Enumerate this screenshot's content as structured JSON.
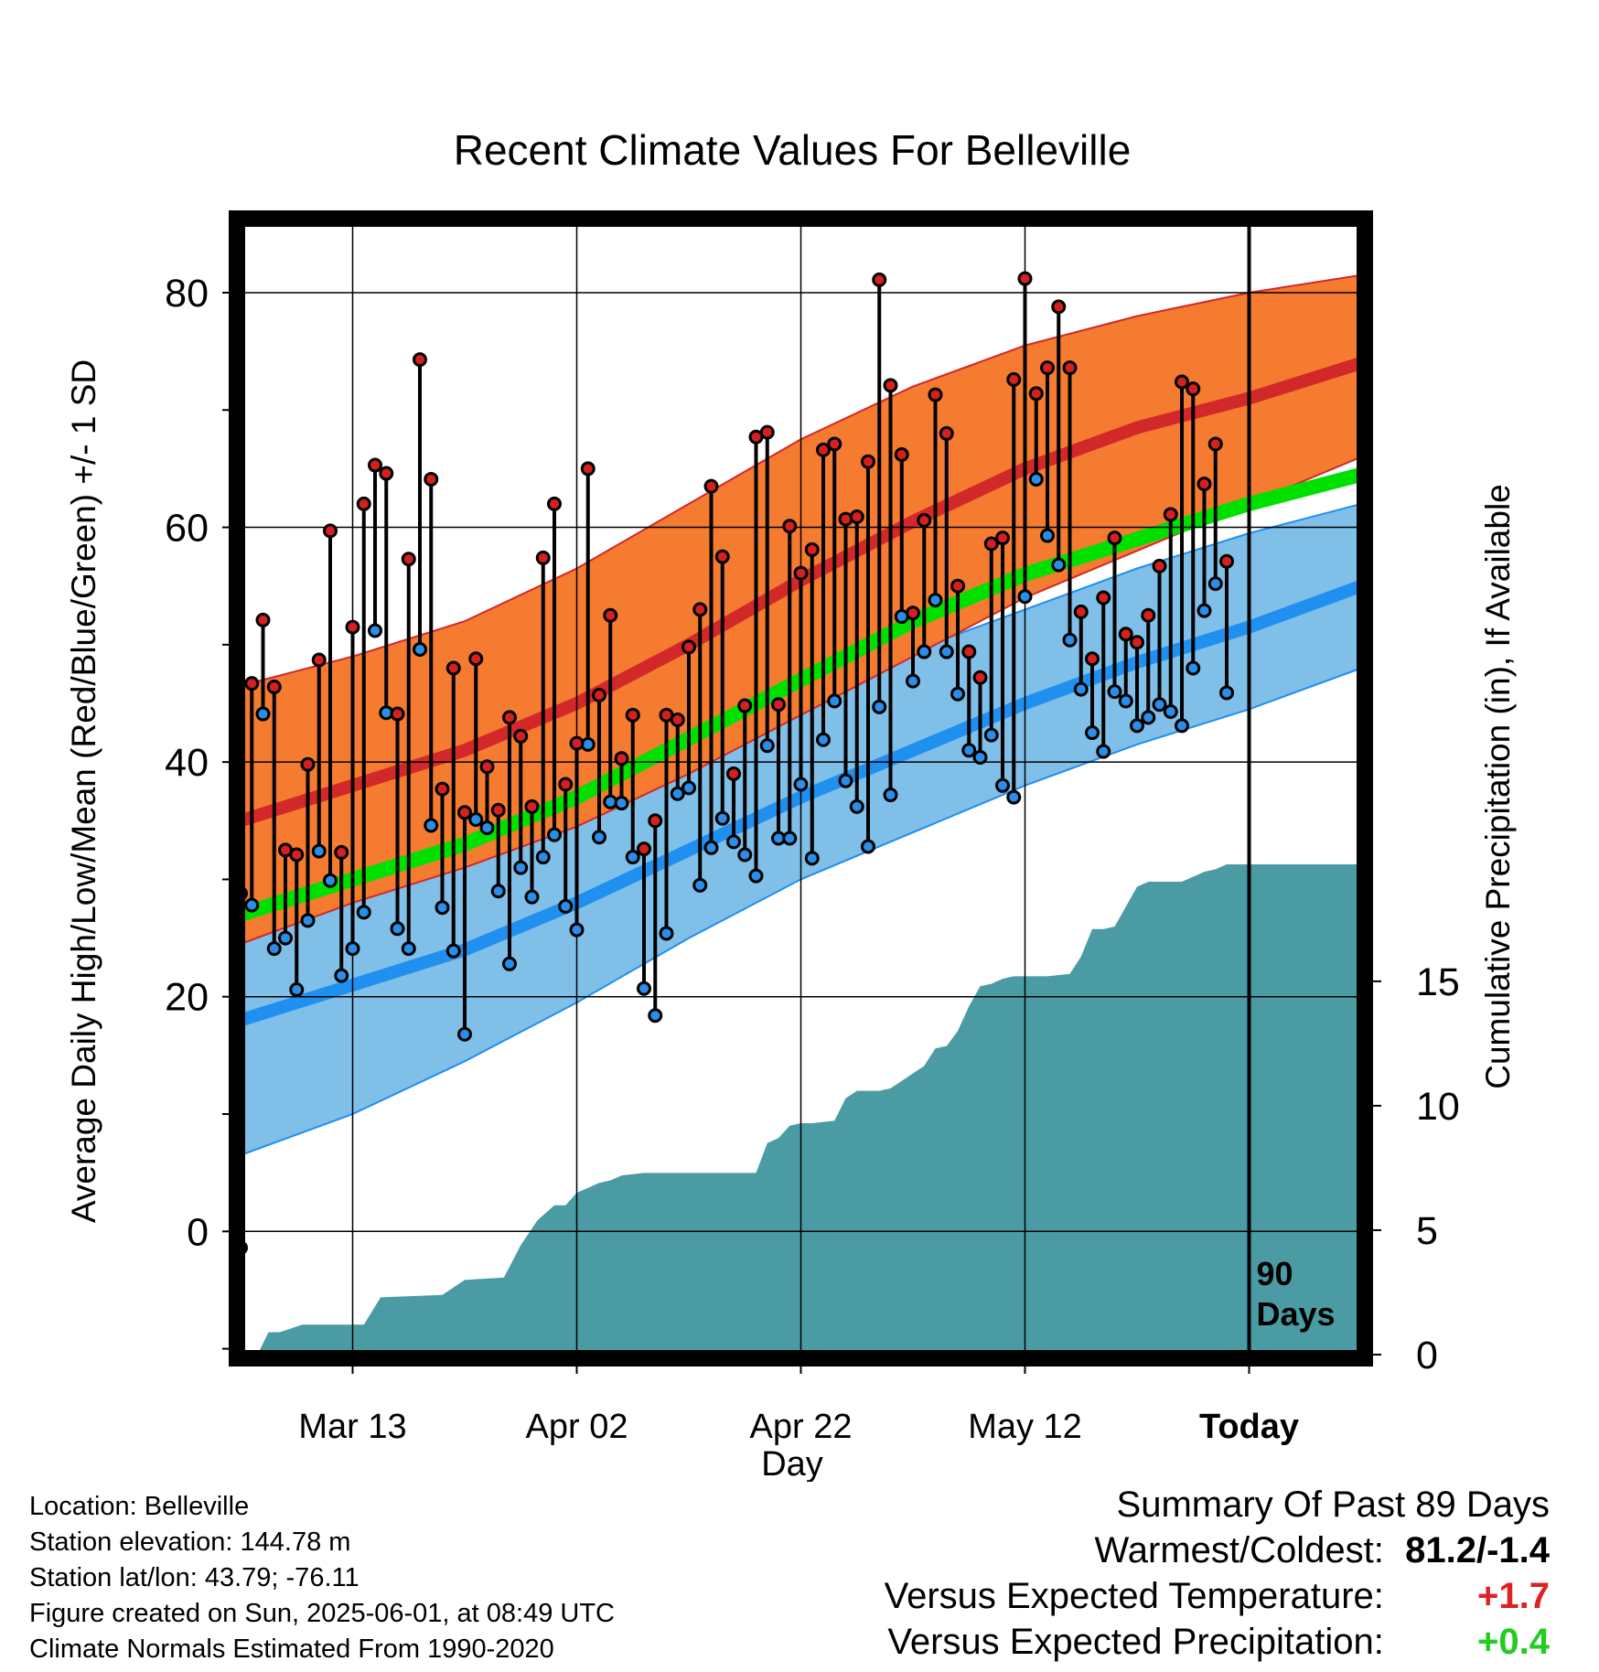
{
  "title": "Recent Climate Values For Belleville",
  "chart_data": {
    "type": "line",
    "title": "Recent Climate Values For Belleville",
    "xlabel": "Day",
    "ylabel_left": "Average Daily High/Low/Mean (Red/Blue/Green) +/- 1 SD",
    "ylabel_right": "Cumulative Precipitation (in), If Available",
    "x_ticks": [
      "Mar 13",
      "Apr 02",
      "Apr 22",
      "May 12",
      "Today"
    ],
    "x_tick_days": [
      10,
      30,
      50,
      70,
      90
    ],
    "xlim": [
      0,
      100
    ],
    "y_left_ticks": [
      "0",
      "20",
      "40",
      "60",
      "80"
    ],
    "y_left_tick_values": [
      0,
      20,
      40,
      60,
      80
    ],
    "y_left_lim": [
      -10.5,
      86
    ],
    "y_right_ticks": [
      "0",
      "5",
      "10",
      "15"
    ],
    "y_right_tick_values": [
      0,
      5,
      10,
      15
    ],
    "y_right_lim": [
      0,
      45.5
    ],
    "today_label": [
      "90",
      "Days"
    ],
    "grid": true,
    "colors": {
      "high_band": "#f47b30",
      "high_mean": "#d2282a",
      "low_band": "#7fbfe8",
      "low_mean": "#1f8ff0",
      "mean_line": "#00e000",
      "precip": "#4a9ba4"
    },
    "normals": {
      "day": [
        0,
        10,
        20,
        30,
        40,
        50,
        60,
        70,
        80,
        90,
        100
      ],
      "high_upper": [
        46.5,
        49,
        52,
        56.5,
        62,
        67.5,
        72,
        75.5,
        78,
        80,
        81.5
      ],
      "high_mean": [
        35,
        38,
        41,
        45,
        50,
        55.5,
        60.5,
        65,
        68.5,
        71,
        74
      ],
      "high_lower": [
        24.5,
        28,
        31,
        34.5,
        39,
        44,
        49,
        54,
        58,
        62,
        66
      ],
      "low_upper": [
        30.5,
        32.5,
        34,
        37,
        41,
        45,
        49.5,
        53,
        56.5,
        59.5,
        62
      ],
      "low_mean": [
        18,
        21,
        24,
        28,
        32.5,
        37,
        41,
        45,
        48.5,
        51.5,
        55
      ],
      "low_lower": [
        6.5,
        10,
        14.5,
        19.5,
        25,
        30,
        34,
        38,
        41.5,
        44.5,
        48
      ],
      "mean": [
        27,
        30,
        33,
        37,
        42,
        47,
        52,
        56,
        59,
        62,
        64.5
      ]
    },
    "series": [
      {
        "name": "High",
        "values": [
          28.8,
          46.7,
          52.1,
          46.4,
          32.5,
          32.1,
          39.8,
          48.7,
          59.7,
          32.3,
          51.5,
          62.0,
          65.3,
          64.6,
          44.1,
          57.3,
          74.3,
          64.1,
          37.7,
          48.0,
          35.7,
          48.8,
          39.6,
          35.9,
          43.8,
          42.2,
          36.2,
          57.4,
          62.0,
          38.1,
          41.6,
          65.0,
          45.7,
          52.5,
          40.3,
          44.0,
          32.6,
          35.0,
          44.0,
          43.6,
          49.8,
          53.0,
          63.5,
          57.5,
          39.0,
          44.8,
          67.7,
          68.1,
          44.9,
          60.1,
          56.1,
          58.1,
          66.6,
          67.1,
          60.7,
          60.9,
          65.6,
          81.1,
          72.1,
          66.2,
          52.7,
          60.6,
          71.3,
          68.0,
          55.0,
          49.4,
          47.2,
          58.6,
          59.1,
          72.6,
          81.2,
          71.4,
          73.6,
          78.8,
          73.6,
          52.8,
          48.8,
          54.0,
          59.1,
          50.9,
          50.2,
          52.5,
          56.7,
          61.1,
          72.4,
          71.8,
          63.7,
          67.1,
          57.1
        ]
      },
      {
        "name": "Low",
        "values": [
          -1.4,
          27.8,
          44.1,
          24.1,
          25.0,
          20.6,
          26.5,
          32.4,
          29.9,
          21.8,
          24.1,
          27.2,
          51.2,
          44.2,
          25.8,
          24.1,
          49.6,
          34.6,
          27.6,
          23.9,
          16.8,
          35.1,
          34.4,
          29.0,
          22.8,
          31.0,
          28.5,
          31.9,
          33.8,
          27.7,
          25.7,
          41.5,
          33.6,
          36.6,
          36.5,
          31.9,
          20.7,
          18.4,
          25.4,
          37.3,
          37.8,
          29.5,
          32.7,
          35.2,
          33.2,
          32.1,
          30.3,
          41.4,
          33.5,
          33.5,
          38.1,
          31.8,
          41.9,
          45.2,
          38.4,
          36.2,
          32.8,
          44.7,
          37.2,
          52.4,
          46.9,
          49.4,
          53.8,
          49.4,
          45.8,
          41.0,
          40.4,
          42.3,
          38.0,
          37.0,
          54.1,
          64.1,
          59.3,
          56.8,
          50.4,
          46.2,
          42.5,
          40.9,
          46.0,
          45.2,
          43.1,
          43.8,
          44.9,
          44.3,
          43.1,
          48.0,
          52.9,
          55.2,
          45.9
        ]
      }
    ],
    "precip": {
      "day": [
        0,
        1.5,
        2.5,
        3.5,
        5.5,
        11,
        12.5,
        18,
        20,
        23.5,
        25,
        26.5,
        28,
        29,
        30,
        31,
        32,
        33,
        34,
        36,
        38,
        40,
        42,
        44,
        46,
        47,
        48,
        49,
        50,
        51,
        53,
        54,
        55,
        57,
        58,
        59,
        61,
        62,
        63,
        64,
        65,
        66,
        67,
        68,
        69,
        70,
        72,
        74,
        75,
        76,
        77,
        78,
        79,
        80,
        81,
        83,
        84,
        86,
        87,
        88,
        89,
        90,
        100
      ],
      "values": [
        0,
        0,
        0.9,
        0.9,
        1.2,
        1.2,
        2.3,
        2.4,
        3.0,
        3.1,
        4.4,
        5.4,
        6.0,
        6.0,
        6.5,
        6.7,
        6.9,
        7.0,
        7.2,
        7.3,
        7.3,
        7.3,
        7.3,
        7.3,
        7.3,
        8.5,
        8.7,
        9.2,
        9.3,
        9.3,
        9.4,
        10.3,
        10.6,
        10.6,
        10.7,
        11.0,
        11.6,
        12.3,
        12.4,
        13.0,
        14.0,
        14.8,
        14.9,
        15.1,
        15.2,
        15.2,
        15.2,
        15.3,
        16.0,
        17.1,
        17.1,
        17.2,
        18.0,
        18.8,
        19.0,
        19.0,
        19.0,
        19.4,
        19.5,
        19.7,
        19.7,
        19.7,
        19.7
      ]
    }
  },
  "footer": {
    "location": "Location: Belleville",
    "elevation": "Station elevation: 144.78 m",
    "latlon": "Station lat/lon: 43.79; -76.11",
    "created": "Figure created on Sun, 2025-06-01, at 08:49 UTC",
    "normals": "Climate Normals Estimated From 1990-2020"
  },
  "summary": {
    "heading": "Summary Of Past 89 Days",
    "warmest_label": "Warmest/Coldest:",
    "warmest_value": "81.2/-1.4",
    "temp_label": "Versus Expected Temperature:",
    "temp_value": "+1.7",
    "precip_label": "Versus Expected Precipitation:",
    "precip_value": "+0.4"
  }
}
